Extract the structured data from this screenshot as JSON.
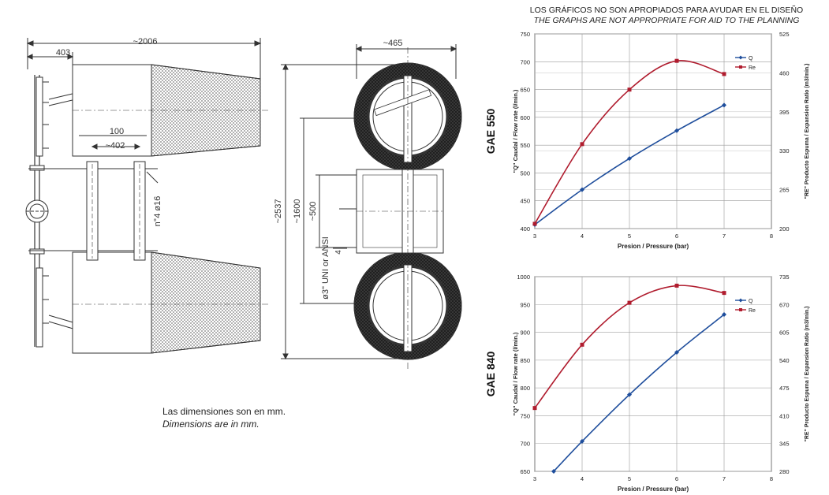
{
  "header": {
    "line1": "LOS GRÁFICOS NO SON APROPIADOS PARA AYUDAR EN EL DISEÑO",
    "line2": "THE GRAPHS ARE NOT APPROPRIATE FOR AID TO THE PLANNING"
  },
  "caption": {
    "line1": "Las dimensiones son en mm.",
    "line2": "Dimensions are in mm."
  },
  "side_view": {
    "dim_overall": "~2006",
    "dim_403": "403",
    "dim_100": "100",
    "dim_402": "~402",
    "dim_holes": "n°4 ø16"
  },
  "front_view": {
    "dim_width": "~465",
    "dim_height": "~2537",
    "dim_1600": "~1600",
    "dim_500": "~500",
    "dim_inlet": "ø3\" UNI or ANSI",
    "dim_4": "4"
  },
  "chart_data": [
    {
      "type": "line",
      "title": "GAE 550",
      "xlabel": "Presion / Pressure (bar)",
      "ylabel": "\"Q\" Caudal / Flow rate (l/min.)",
      "y2label": "\"RE\" Producto Espuma / Expansion Ratio (m3/min.)",
      "x_ticks": [
        "3",
        "4",
        "5",
        "6",
        "7",
        "8"
      ],
      "y_ticks": [
        "400",
        "450",
        "500",
        "550",
        "600",
        "650",
        "700",
        "750"
      ],
      "y2_ticks": [
        "200",
        "265",
        "330",
        "395",
        "460",
        "525"
      ],
      "xlim": [
        3,
        8
      ],
      "ylim": [
        400,
        750
      ],
      "y2lim": [
        200,
        525
      ],
      "legend_position": "top-right",
      "series": [
        {
          "name": "Q",
          "axis": "left",
          "color": "#1f4e9c",
          "x": [
            3,
            4,
            5,
            6,
            7
          ],
          "y": [
            407,
            470,
            526,
            576,
            622
          ]
        },
        {
          "name": "Re",
          "axis": "right",
          "color": "#b01c2e",
          "x": [
            3,
            4,
            5,
            6,
            7
          ],
          "y": [
            208,
            341,
            432,
            480,
            458
          ]
        }
      ]
    },
    {
      "type": "line",
      "title": "GAE 840",
      "xlabel": "Presion / Pressure (bar)",
      "ylabel": "\"Q\" Caudal / Flow rate (l/min.)",
      "y2label": "\"RE\" Producto Espuma / Expansion Ratio (m3/min.)",
      "x_ticks": [
        "3",
        "4",
        "5",
        "6",
        "7",
        "8"
      ],
      "y_ticks": [
        "650",
        "700",
        "750",
        "800",
        "850",
        "900",
        "950",
        "1000"
      ],
      "y2_ticks": [
        "280",
        "345",
        "410",
        "475",
        "540",
        "605",
        "670",
        "735"
      ],
      "xlim": [
        3,
        8
      ],
      "ylim": [
        650,
        1000
      ],
      "y2lim": [
        280,
        735
      ],
      "legend_position": "top-right",
      "series": [
        {
          "name": "Q",
          "axis": "left",
          "color": "#1f4e9c",
          "x": [
            3.4,
            4,
            5,
            6,
            7
          ],
          "y": [
            650,
            704,
            788,
            864,
            932
          ]
        },
        {
          "name": "Re",
          "axis": "right",
          "color": "#b01c2e",
          "x": [
            3,
            4,
            5,
            6,
            7
          ],
          "y": [
            428,
            576,
            674,
            714,
            697
          ]
        }
      ]
    }
  ]
}
